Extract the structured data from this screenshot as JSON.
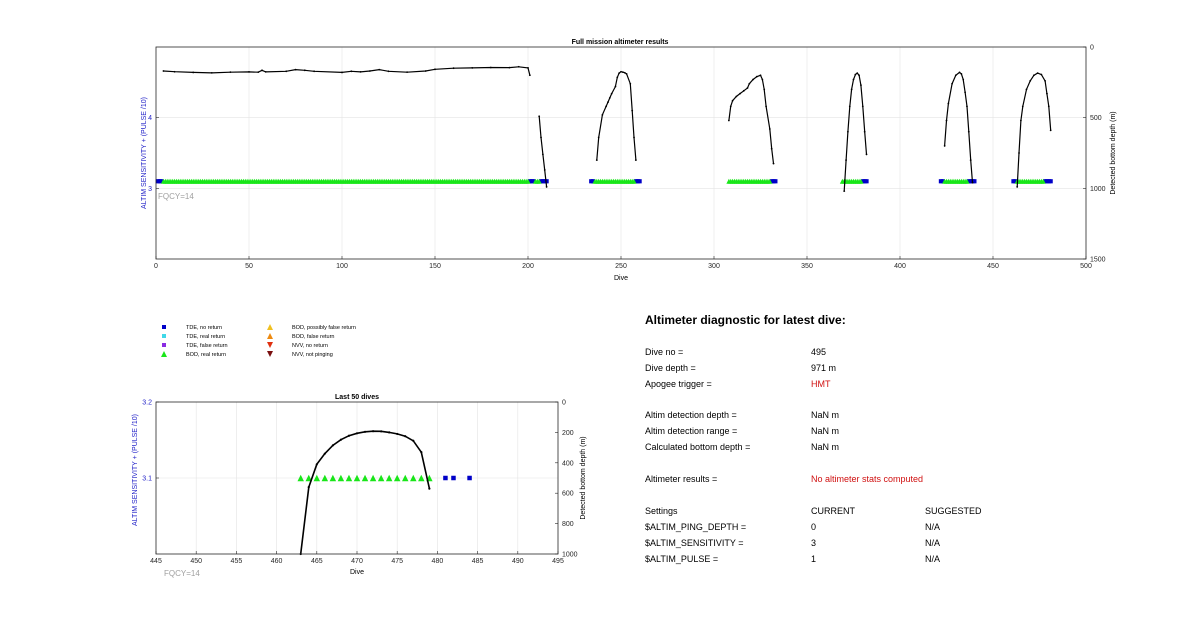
{
  "chart_data": [
    {
      "type": "scatter",
      "title": "Full mission altimeter results",
      "xlabel": "Dive",
      "ylabel_left": "ALTIM SENSITIVITY + (PULSE /10)",
      "ylabel_right": "Detected bottom depth (m)",
      "xlim": [
        0,
        500
      ],
      "ylim_left": [
        2,
        5
      ],
      "ylim_right": [
        1500,
        0
      ],
      "right_axis_reversed": true,
      "x_ticks": [
        "0",
        "50",
        "100",
        "150",
        "200",
        "250",
        "300",
        "350",
        "400",
        "450",
        "500"
      ],
      "y_ticks_left": [
        "3",
        "4"
      ],
      "y_ticks_right": [
        "0",
        "500",
        "1000",
        "1500"
      ],
      "grid": true,
      "annotation": "FQCY=14",
      "series": [
        {
          "name": "TDE, no return",
          "marker": "square",
          "color": "#0000c8",
          "y": 3.1,
          "x": [
            1,
            2,
            3,
            201,
            202,
            203,
            207,
            208,
            209,
            210,
            234,
            235,
            258,
            259,
            260,
            331,
            332,
            333,
            380,
            381,
            382,
            422,
            423,
            437,
            438,
            439,
            440,
            461,
            462,
            478,
            479,
            480,
            481
          ]
        },
        {
          "name": "BOD, real return",
          "marker": "triangle",
          "color": "#19e619",
          "y": 3.1,
          "ranges": [
            [
              4,
              200
            ],
            [
              204,
              206
            ],
            [
              236,
              257
            ],
            [
              308,
              330
            ],
            [
              369,
              379
            ],
            [
              424,
              436
            ],
            [
              463,
              477
            ]
          ]
        },
        {
          "name": "Detected bottom depth",
          "marker": "dot-line",
          "color": "#000000",
          "axis": "right",
          "segments": [
            [
              [
                4,
                170
              ],
              [
                10,
                175
              ],
              [
                20,
                180
              ],
              [
                30,
                183
              ],
              [
                40,
                178
              ],
              [
                50,
                176
              ],
              [
                55,
                178
              ],
              [
                57,
                165
              ],
              [
                59,
                176
              ],
              [
                70,
                172
              ],
              [
                75,
                160
              ],
              [
                80,
                165
              ],
              [
                85,
                172
              ],
              [
                100,
                180
              ],
              [
                105,
                172
              ],
              [
                110,
                176
              ],
              [
                115,
                170
              ],
              [
                120,
                160
              ],
              [
                125,
                172
              ],
              [
                135,
                178
              ],
              [
                145,
                170
              ],
              [
                150,
                158
              ],
              [
                160,
                150
              ],
              [
                170,
                148
              ],
              [
                180,
                145
              ],
              [
                190,
                146
              ],
              [
                195,
                140
              ],
              [
                200,
                148
              ],
              [
                201,
                200
              ]
            ],
            [
              [
                206,
                490
              ],
              [
                207,
                640
              ],
              [
                208,
                760
              ],
              [
                209,
                870
              ],
              [
                210,
                990
              ]
            ],
            [
              [
                237,
                800
              ],
              [
                238,
                640
              ],
              [
                240,
                480
              ],
              [
                242,
                420
              ],
              [
                243,
                390
              ],
              [
                244,
                360
              ],
              [
                245,
                330
              ],
              [
                247,
                280
              ],
              [
                248,
                215
              ],
              [
                249,
                185
              ],
              [
                250,
                175
              ],
              [
                251,
                178
              ],
              [
                252,
                182
              ],
              [
                253,
                190
              ],
              [
                255,
                260
              ],
              [
                256,
                450
              ],
              [
                257,
                640
              ],
              [
                258,
                800
              ]
            ],
            [
              [
                308,
                520
              ],
              [
                309,
                420
              ],
              [
                310,
                380
              ],
              [
                312,
                350
              ],
              [
                314,
                330
              ],
              [
                316,
                310
              ],
              [
                318,
                290
              ],
              [
                319,
                260
              ],
              [
                321,
                230
              ],
              [
                323,
                210
              ],
              [
                325,
                200
              ],
              [
                326,
                230
              ],
              [
                327,
                300
              ],
              [
                328,
                420
              ],
              [
                330,
                580
              ],
              [
                331,
                720
              ],
              [
                332,
                825
              ]
            ],
            [
              [
                370,
                1020
              ],
              [
                371,
                800
              ],
              [
                372,
                600
              ],
              [
                373,
                420
              ],
              [
                374,
                300
              ],
              [
                375,
                230
              ],
              [
                376,
                195
              ],
              [
                377,
                185
              ],
              [
                378,
                200
              ],
              [
                379,
                270
              ],
              [
                380,
                420
              ],
              [
                381,
                600
              ],
              [
                382,
                760
              ]
            ],
            [
              [
                424,
                700
              ],
              [
                425,
                520
              ],
              [
                426,
                400
              ],
              [
                428,
                260
              ],
              [
                430,
                200
              ],
              [
                432,
                180
              ],
              [
                433,
                190
              ],
              [
                434,
                230
              ],
              [
                435,
                320
              ],
              [
                436,
                420
              ],
              [
                437,
                600
              ],
              [
                438,
                800
              ],
              [
                439,
                960
              ]
            ],
            [
              [
                463,
                990
              ],
              [
                464,
                750
              ],
              [
                465,
                520
              ],
              [
                466,
                420
              ],
              [
                468,
                300
              ],
              [
                470,
                240
              ],
              [
                472,
                200
              ],
              [
                474,
                185
              ],
              [
                476,
                195
              ],
              [
                478,
                240
              ],
              [
                479,
                330
              ],
              [
                480,
                420
              ],
              [
                481,
                590
              ]
            ]
          ]
        }
      ]
    },
    {
      "type": "scatter",
      "title": "Last 50 dives",
      "xlabel": "Dive",
      "ylabel_left": "ALTIM SENSITIVITY + (PULSE /10)",
      "ylabel_right": "Detected bottom depth (m)",
      "xlim": [
        445,
        495
      ],
      "ylim_left": [
        3.0,
        3.2
      ],
      "ylim_right": [
        1000,
        0
      ],
      "right_axis_reversed": true,
      "x_ticks": [
        "445",
        "450",
        "455",
        "460",
        "465",
        "470",
        "475",
        "480",
        "485",
        "490",
        "495"
      ],
      "y_ticks_left": [
        "3.1",
        "3.2"
      ],
      "y_ticks_right": [
        "0",
        "200",
        "400",
        "600",
        "800",
        "1000"
      ],
      "grid": true,
      "annotation": "FQCY=14",
      "series": [
        {
          "name": "BOD, real return",
          "marker": "triangle",
          "color": "#19e619",
          "y": 3.1,
          "x": [
            463,
            464,
            465,
            466,
            467,
            468,
            469,
            470,
            471,
            472,
            473,
            474,
            475,
            476,
            477,
            478,
            479
          ]
        },
        {
          "name": "TDE, no return",
          "marker": "square",
          "color": "#0000c8",
          "y": 3.1,
          "x": [
            481,
            482,
            484
          ]
        },
        {
          "name": "Detected bottom depth",
          "marker": "dot-line",
          "color": "#000000",
          "axis": "right",
          "points": [
            [
              463,
              1000
            ],
            [
              464,
              560
            ],
            [
              465,
              410
            ],
            [
              466,
              340
            ],
            [
              467,
              285
            ],
            [
              468,
              248
            ],
            [
              469,
              222
            ],
            [
              470,
              206
            ],
            [
              471,
              196
            ],
            [
              472,
              192
            ],
            [
              473,
              193
            ],
            [
              474,
              200
            ],
            [
              475,
              210
            ],
            [
              476,
              225
            ],
            [
              477,
              255
            ],
            [
              478,
              330
            ],
            [
              479,
              570
            ]
          ]
        }
      ]
    }
  ],
  "legend": [
    {
      "label": "TDE, no return",
      "marker": "square",
      "color": "#0000c8"
    },
    {
      "label": "BOD, possibly false return",
      "marker": "triangle",
      "color": "#f0c020"
    },
    {
      "label": "TDE, real return",
      "marker": "square",
      "color": "#40d8e8"
    },
    {
      "label": "BOD, false return",
      "marker": "triangle",
      "color": "#ee8a10"
    },
    {
      "label": "TDE, false return",
      "marker": "square",
      "color": "#8a2be2"
    },
    {
      "label": "NVV, no return",
      "marker": "triangle-down",
      "color": "#e03010"
    },
    {
      "label": "BOD, real return",
      "marker": "triangle",
      "color": "#19e619"
    },
    {
      "label": "NVV, not pinging",
      "marker": "triangle-down",
      "color": "#7a1010"
    }
  ],
  "diagnostic": {
    "title": "Altimeter diagnostic for latest dive:",
    "dive_no_label": "Dive no =",
    "dive_no_value": "495",
    "dive_depth_label": "Dive depth =",
    "dive_depth_value": "971 m",
    "apogee_label": "Apogee trigger =",
    "apogee_value": "HMT",
    "detect_depth_label": "Altim detection depth =",
    "detect_depth_value": "NaN m",
    "detect_range_label": "Altim detection range =",
    "detect_range_value": "NaN m",
    "calc_bottom_label": "Calculated bottom depth =",
    "calc_bottom_value": "NaN m",
    "results_label": "Altimeter results =",
    "results_value": "No altimeter stats computed",
    "settings_label": "Settings",
    "current_label": "CURRENT",
    "suggested_label": "SUGGESTED",
    "settings": [
      {
        "name": "$ALTIM_PING_DEPTH =",
        "current": "0",
        "suggested": "N/A"
      },
      {
        "name": "$ALTIM_SENSITIVITY =",
        "current": "3",
        "suggested": "N/A"
      },
      {
        "name": "$ALTIM_PULSE =",
        "current": "1",
        "suggested": "N/A"
      }
    ]
  },
  "colors": {
    "axis_label_left": "#2323c8",
    "annotation": "#a0a0a0",
    "highlight": "#d01010"
  }
}
